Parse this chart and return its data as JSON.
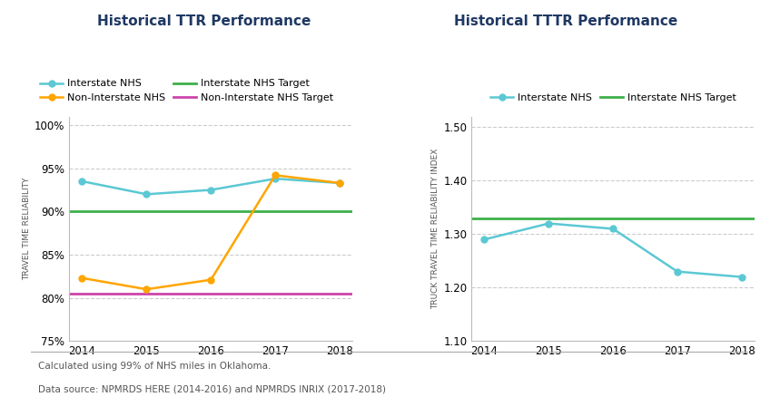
{
  "ttr": {
    "title": "Historical TTR Performance",
    "years": [
      2014,
      2015,
      2016,
      2017,
      2018
    ],
    "interstate_nhs": [
      93.5,
      92.0,
      92.5,
      93.8,
      93.3
    ],
    "non_interstate_nhs": [
      82.3,
      81.0,
      82.1,
      94.2,
      93.3
    ],
    "interstate_nhs_target": 90.0,
    "non_interstate_nhs_target": 80.5,
    "ylim": [
      75,
      101
    ],
    "yticks": [
      75,
      80,
      85,
      90,
      95,
      100
    ],
    "ytick_labels": [
      "75%",
      "80%",
      "85%",
      "90%",
      "95%",
      "100%"
    ],
    "ylabel": "TRAVEL TIME RELIABILITY"
  },
  "tttr": {
    "title": "Historical TTTR Performance",
    "years": [
      2014,
      2015,
      2016,
      2017,
      2018
    ],
    "interstate_nhs": [
      1.29,
      1.32,
      1.31,
      1.23,
      1.22
    ],
    "interstate_nhs_target": 1.33,
    "ylim": [
      1.1,
      1.52
    ],
    "yticks": [
      1.1,
      1.2,
      1.3,
      1.4,
      1.5
    ],
    "ytick_labels": [
      "1.10",
      "1.20",
      "1.30",
      "1.40",
      "1.50"
    ],
    "ylabel": "TRUCK TRAVEL TIME RELIABILITY INDEX"
  },
  "footnote_line1": "Calculated using 99% of NHS miles in Oklahoma.",
  "footnote_line2": "Data source: NPMRDS HERE (2014-2016) and NPMRDS INRIX (2017-2018)",
  "bg_color": "#FFFFFF",
  "line_color_blue": "#5BC8D4",
  "line_color_orange": "#FFA500",
  "line_color_green": "#3DB04B",
  "line_color_magenta": "#CC44AA",
  "grid_color": "#CCCCCC",
  "title_color": "#1F3864",
  "axis_label_color": "#555555",
  "footnote_color": "#555555",
  "separator_color": "#AAAAAA"
}
